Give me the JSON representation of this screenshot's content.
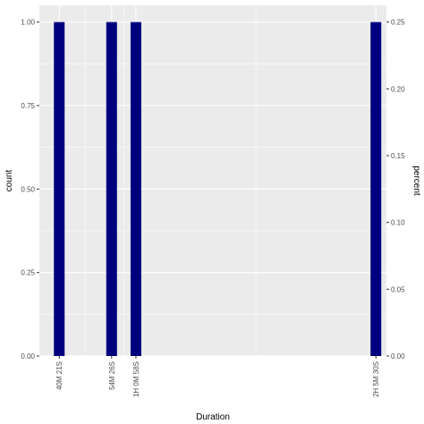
{
  "chart_data": {
    "type": "bar",
    "xlabel": "Duration",
    "ylabel": "count",
    "y2label": "percent",
    "categories": [
      "40M 21S",
      "54M 26S",
      "1H 0M 58S",
      "2H 5M 30S"
    ],
    "x_seconds": [
      2421,
      3266,
      3658,
      7530
    ],
    "xlim_seconds": [
      2100,
      7700
    ],
    "values": [
      1,
      1,
      1,
      1
    ],
    "percent_values": [
      0.25,
      0.25,
      0.25,
      0.25
    ],
    "ylim": [
      0,
      1.05
    ],
    "y_ticks": [
      "0.00",
      "0.25",
      "0.50",
      "0.75",
      "1.00"
    ],
    "y2_ticks": [
      "0.00",
      "0.05",
      "0.10",
      "0.15",
      "0.20",
      "0.25"
    ],
    "grid": true,
    "bar_color": "#00007F",
    "panel_color": "#EBEBEB",
    "grid_color": "#FFFFFF"
  }
}
